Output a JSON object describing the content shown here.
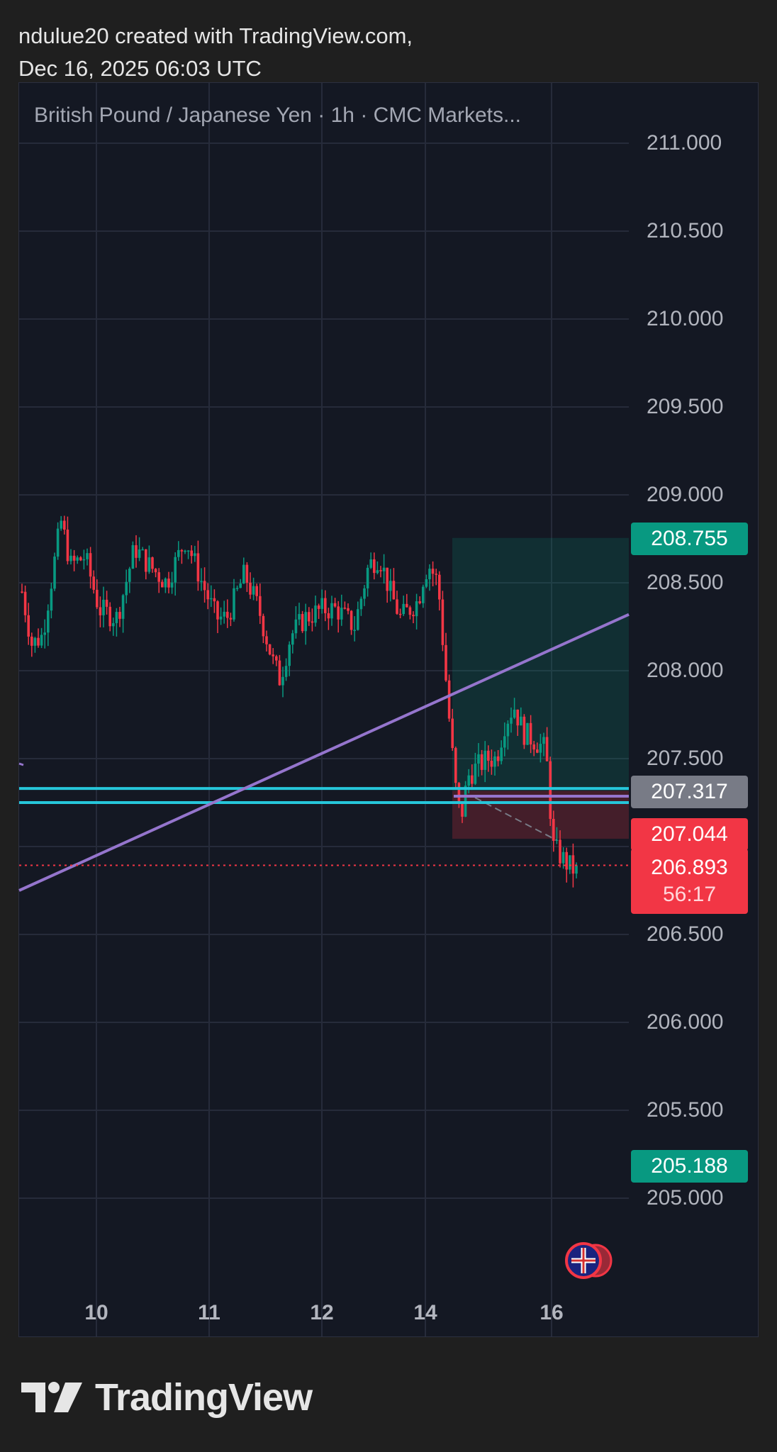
{
  "header": {
    "credit_line1": "ndulue20 created with TradingView.com,",
    "credit_line2": "Dec 16, 2025 06:03 UTC"
  },
  "chart_data": {
    "type": "candlestick",
    "title": "British Pound / Japanese Yen · 1h · CMC Markets...",
    "y_ticks": [
      "211.000",
      "210.500",
      "210.000",
      "209.500",
      "209.000",
      "208.500",
      "208.000",
      "207.500",
      "206.500",
      "206.000",
      "205.500",
      "205.000"
    ],
    "x_ticks": [
      "10",
      "11",
      "12",
      "14",
      "16"
    ],
    "ylim": [
      204.5,
      211.35
    ],
    "grid": true,
    "colors": {
      "up": "#089981",
      "down": "#f23645",
      "trendline": "#9575cd",
      "hline": "#26c6da",
      "background": "#141823"
    },
    "tags": {
      "target": "208.755",
      "level": "207.317",
      "stop": "207.044",
      "last_price": "206.893",
      "countdown": "56:17",
      "low_level": "205.188"
    },
    "candles_approx": [
      {
        "t": "Dec 9",
        "o": 208.5,
        "h": 208.7,
        "l": 208.1,
        "c": 208.2
      },
      {
        "t": "Dec 10",
        "o": 208.3,
        "h": 208.95,
        "l": 208.1,
        "c": 208.7
      },
      {
        "t": "Dec 11",
        "o": 208.6,
        "h": 208.9,
        "l": 207.9,
        "c": 208.2
      },
      {
        "t": "Dec 12",
        "o": 208.3,
        "h": 208.7,
        "l": 207.95,
        "c": 208.6
      },
      {
        "t": "Dec 14",
        "o": 208.5,
        "h": 208.6,
        "l": 206.95,
        "c": 207.1
      },
      {
        "t": "Dec 15",
        "o": 207.4,
        "h": 207.85,
        "l": 207.1,
        "c": 207.6
      },
      {
        "t": "Dec 16",
        "o": 207.6,
        "h": 207.65,
        "l": 206.75,
        "c": 206.893
      }
    ],
    "position": {
      "entry": 207.317,
      "target": 208.755,
      "stop": 207.044
    },
    "horizontal_lines": [
      207.33,
      207.25
    ],
    "trendline": {
      "from": 206.75,
      "to": 208.32
    }
  },
  "footer": {
    "brand": "TradingView"
  }
}
